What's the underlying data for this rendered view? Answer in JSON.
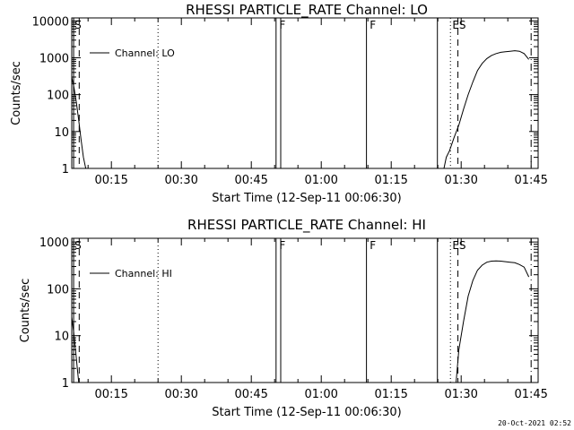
{
  "footer": {
    "timestamp": "20-Oct-2021 02:52"
  },
  "chart_data": [
    {
      "type": "line",
      "title": "RHESSI PARTICLE_RATE Channel: LO",
      "xlabel": "Start Time (12-Sep-11 00:06:30)",
      "ylabel": "Counts/sec",
      "x_unit": "minutes since 00:06:30",
      "xlim": [
        0,
        100
      ],
      "ylim": [
        1,
        12000
      ],
      "yscale": "log",
      "grid": false,
      "legend": "top-left",
      "xticks": [
        {
          "x": 8.5,
          "label": "00:15"
        },
        {
          "x": 23.5,
          "label": "00:30"
        },
        {
          "x": 38.5,
          "label": "00:45"
        },
        {
          "x": 53.5,
          "label": "01:00"
        },
        {
          "x": 68.5,
          "label": "01:15"
        },
        {
          "x": 83.5,
          "label": "01:30"
        },
        {
          "x": 98.5,
          "label": "01:45"
        }
      ],
      "yticks": [
        {
          "y": 1,
          "label": "1"
        },
        {
          "y": 10,
          "label": "10"
        },
        {
          "y": 100,
          "label": "100"
        },
        {
          "y": 1000,
          "label": "1000"
        },
        {
          "y": 10000,
          "label": "10000"
        }
      ],
      "series": [
        {
          "name": "Channel: LO",
          "segments": [
            [
              [
                0,
                300
              ],
              [
                0.5,
                150
              ],
              [
                1,
                60
              ],
              [
                1.5,
                20
              ],
              [
                2,
                6
              ],
              [
                2.5,
                2
              ],
              [
                3,
                1
              ],
              [
                4,
                1
              ]
            ],
            [
              [
                43.8,
                1
              ],
              [
                43.8,
                12000
              ],
              [
                44.8,
                12000
              ],
              [
                44.8,
                1
              ]
            ],
            [
              [
                63.2,
                1
              ],
              [
                63.2,
                12000
              ]
            ],
            [
              [
                78.4,
                12000
              ],
              [
                78.4,
                1
              ]
            ],
            [
              [
                79.8,
                1
              ],
              [
                80.3,
                2
              ],
              [
                81,
                3
              ],
              [
                82,
                7
              ],
              [
                83,
                15
              ],
              [
                84,
                40
              ],
              [
                85,
                100
              ],
              [
                86,
                220
              ],
              [
                87,
                450
              ],
              [
                88,
                700
              ],
              [
                89,
                950
              ],
              [
                90,
                1150
              ],
              [
                91,
                1300
              ],
              [
                92,
                1400
              ],
              [
                93,
                1450
              ],
              [
                94,
                1500
              ],
              [
                95,
                1550
              ],
              [
                96,
                1500
              ],
              [
                97,
                1300
              ],
              [
                98,
                900
              ]
            ]
          ]
        }
      ],
      "vlines": [
        {
          "x": 0.4,
          "style": "solid"
        },
        {
          "x": 1.6,
          "style": "dashed"
        },
        {
          "x": 18.5,
          "style": "dotted"
        },
        {
          "x": 81.2,
          "style": "dotted"
        },
        {
          "x": 82.8,
          "style": "dashed"
        },
        {
          "x": 98.5,
          "style": "dashdot"
        }
      ],
      "flags": [
        {
          "x": 0.6,
          "text": "S"
        },
        {
          "x": 44.5,
          "text": "F"
        },
        {
          "x": 63.9,
          "text": "F"
        },
        {
          "x": 81.6,
          "text": "ES"
        }
      ]
    },
    {
      "type": "line",
      "title": "RHESSI PARTICLE_RATE Channel: HI",
      "xlabel": "Start Time (12-Sep-11 00:06:30)",
      "ylabel": "Counts/sec",
      "x_unit": "minutes since 00:06:30",
      "xlim": [
        0,
        100
      ],
      "ylim": [
        1,
        1200
      ],
      "yscale": "log",
      "grid": false,
      "legend": "top-left",
      "xticks": [
        {
          "x": 8.5,
          "label": "00:15"
        },
        {
          "x": 23.5,
          "label": "00:30"
        },
        {
          "x": 38.5,
          "label": "00:45"
        },
        {
          "x": 53.5,
          "label": "01:00"
        },
        {
          "x": 68.5,
          "label": "01:15"
        },
        {
          "x": 83.5,
          "label": "01:30"
        },
        {
          "x": 98.5,
          "label": "01:45"
        }
      ],
      "yticks": [
        {
          "y": 1,
          "label": "1"
        },
        {
          "y": 10,
          "label": "10"
        },
        {
          "y": 100,
          "label": "100"
        },
        {
          "y": 1000,
          "label": "1000"
        }
      ],
      "series": [
        {
          "name": "Channel: HI",
          "segments": [
            [
              [
                0,
                25
              ],
              [
                0.4,
                12
              ],
              [
                0.8,
                5
              ],
              [
                1.2,
                2
              ],
              [
                1.5,
                1
              ]
            ],
            [
              [
                43.8,
                1
              ],
              [
                43.8,
                1200
              ],
              [
                44.8,
                1200
              ],
              [
                44.8,
                1
              ]
            ],
            [
              [
                63.2,
                1
              ],
              [
                63.2,
                1200
              ]
            ],
            [
              [
                78.4,
                1200
              ],
              [
                78.4,
                1
              ]
            ],
            [
              [
                82.4,
                1
              ],
              [
                83,
                5
              ],
              [
                84,
                20
              ],
              [
                85,
                70
              ],
              [
                86,
                150
              ],
              [
                87,
                250
              ],
              [
                88,
                320
              ],
              [
                89,
                370
              ],
              [
                90,
                390
              ],
              [
                91,
                395
              ],
              [
                92,
                390
              ],
              [
                93,
                380
              ],
              [
                94,
                370
              ],
              [
                95,
                360
              ],
              [
                96,
                330
              ],
              [
                97,
                290
              ],
              [
                98,
                180
              ]
            ]
          ]
        }
      ],
      "vlines": [
        {
          "x": 0.4,
          "style": "solid"
        },
        {
          "x": 1.6,
          "style": "dashed"
        },
        {
          "x": 18.5,
          "style": "dotted"
        },
        {
          "x": 81.2,
          "style": "dotted"
        },
        {
          "x": 82.8,
          "style": "dashed"
        },
        {
          "x": 98.5,
          "style": "dashdot"
        }
      ],
      "flags": [
        {
          "x": 0.6,
          "text": "S"
        },
        {
          "x": 44.5,
          "text": "F"
        },
        {
          "x": 63.9,
          "text": "F"
        },
        {
          "x": 81.6,
          "text": "ES"
        }
      ]
    }
  ]
}
